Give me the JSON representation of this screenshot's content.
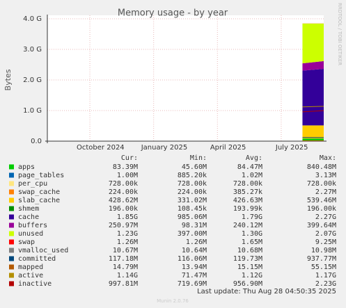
{
  "chart_data": {
    "type": "area",
    "title": "Memory usage - by year",
    "y_label": "Bytes",
    "side_label": "RRDTOOL / TOBI OETIKER",
    "x": [
      "2025-08",
      "2025-09"
    ],
    "xlim": [
      "2024-08",
      "2025-09"
    ],
    "xticks": [
      {
        "value": "2024-10",
        "label": "October 2024"
      },
      {
        "value": "2025-01",
        "label": "January 2025"
      },
      {
        "value": "2025-04",
        "label": "April 2025"
      },
      {
        "value": "2025-07",
        "label": "July 2025"
      }
    ],
    "ylim": [
      0,
      4000000000
    ],
    "yticks": [
      {
        "value": 0,
        "label": "0.0"
      },
      {
        "value": 1000000000,
        "label": "1.0 G"
      },
      {
        "value": 2000000000,
        "label": "2.0 G"
      },
      {
        "value": 3000000000,
        "label": "3.0 G"
      },
      {
        "value": 4000000000,
        "label": "4.0 G"
      }
    ],
    "grid": true,
    "series": [
      {
        "name": "apps",
        "color": "#00cc00",
        "draw": "stack",
        "values": [
          84470000,
          83390000
        ]
      },
      {
        "name": "page_tables",
        "color": "#0066b3",
        "draw": "stack",
        "values": [
          1020000,
          1000000
        ]
      },
      {
        "name": "per_cpu",
        "color": "#ffe680",
        "draw": "stack",
        "values": [
          728000,
          728000
        ]
      },
      {
        "name": "swap_cache",
        "color": "#ff8000",
        "draw": "stack",
        "values": [
          385270,
          224000
        ]
      },
      {
        "name": "slab_cache",
        "color": "#ffcc00",
        "draw": "stack",
        "values": [
          426630000,
          428620000
        ]
      },
      {
        "name": "shmem",
        "color": "#008f00",
        "draw": "stack",
        "values": [
          193990,
          196000
        ]
      },
      {
        "name": "cache",
        "color": "#330099",
        "draw": "stack",
        "values": [
          1790000000,
          1850000000
        ]
      },
      {
        "name": "buffers",
        "color": "#990099",
        "draw": "stack",
        "values": [
          240120000,
          250970000
        ]
      },
      {
        "name": "unused",
        "color": "#ccff00",
        "draw": "stack",
        "values": [
          1300000000,
          1230000000
        ]
      },
      {
        "name": "swap",
        "color": "#ff0000",
        "draw": "stack",
        "values": [
          1650000,
          1260000
        ]
      },
      {
        "name": "vmalloc_used",
        "color": "#808080",
        "draw": "line",
        "values": [
          10680000,
          10670000
        ]
      },
      {
        "name": "committed",
        "color": "#00487d",
        "draw": "line",
        "values": [
          119730000,
          117180000
        ]
      },
      {
        "name": "mapped",
        "color": "#b35a00",
        "draw": "line",
        "values": [
          15150000,
          14790000
        ]
      },
      {
        "name": "active",
        "color": "#b38f00",
        "draw": "line",
        "values": [
          1120000000,
          1140000000
        ]
      },
      {
        "name": "inactive",
        "color": "#b30000",
        "draw": "line",
        "values": [
          956900000,
          997810000
        ]
      }
    ],
    "legend_table": {
      "columns": [
        "Cur:",
        "Min:",
        "Avg:",
        "Max:"
      ],
      "rows": [
        [
          "83.39M",
          "45.60M",
          "84.47M",
          "840.48M"
        ],
        [
          "1.00M",
          "885.20k",
          "1.02M",
          "3.13M"
        ],
        [
          "728.00k",
          "728.00k",
          "728.00k",
          "728.00k"
        ],
        [
          "224.00k",
          "224.00k",
          "385.27k",
          "2.27M"
        ],
        [
          "428.62M",
          "331.02M",
          "426.63M",
          "539.46M"
        ],
        [
          "196.00k",
          "108.45k",
          "193.99k",
          "196.00k"
        ],
        [
          "1.85G",
          "985.06M",
          "1.79G",
          "2.27G"
        ],
        [
          "250.97M",
          "98.31M",
          "240.12M",
          "399.64M"
        ],
        [
          "1.23G",
          "397.00M",
          "1.30G",
          "2.07G"
        ],
        [
          "1.26M",
          "1.26M",
          "1.65M",
          "9.25M"
        ],
        [
          "10.67M",
          "10.64M",
          "10.68M",
          "10.98M"
        ],
        [
          "117.18M",
          "116.06M",
          "119.73M",
          "937.77M"
        ],
        [
          "14.79M",
          "13.94M",
          "15.15M",
          "55.15M"
        ],
        [
          "1.14G",
          "71.47M",
          "1.12G",
          "1.17G"
        ],
        [
          "997.81M",
          "719.69M",
          "956.90M",
          "2.23G"
        ]
      ]
    },
    "last_update": "Last update: Thu Aug 28 04:50:35 2025",
    "footer": "Munin 2.0.76"
  }
}
